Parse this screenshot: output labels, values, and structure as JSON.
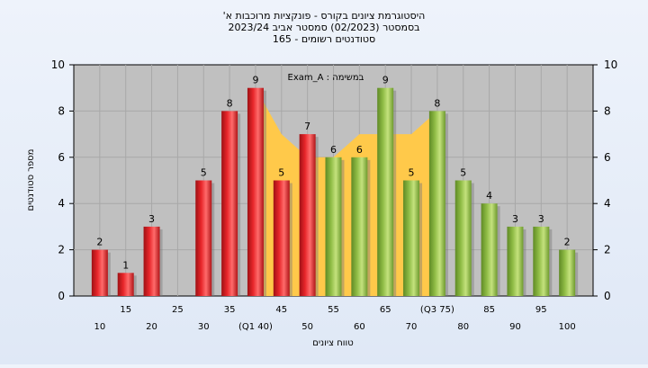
{
  "chart_data": {
    "type": "bar",
    "title_lines": [
      "היסטוגרמת ציונים בקורס - פונקציות מרוכבות א'",
      "בסמסטר  (02/2023)  סמסטר אביב 2023/24",
      "סטודנטים רשומים - 165"
    ],
    "annotation": "במשימה : Exam_A",
    "xlabel": "טווח ציונים",
    "ylabel": "מספר סטודנטים",
    "ylim": [
      0,
      10
    ],
    "yticks": [
      0,
      2,
      4,
      6,
      8,
      10
    ],
    "grid": true,
    "categories": [
      "10",
      "15",
      "20",
      "25",
      "30",
      "35",
      "40",
      "45",
      "50",
      "55",
      "60",
      "65",
      "70",
      "75",
      "80",
      "85",
      "90",
      "95",
      "100"
    ],
    "x_tick_labels": [
      "10",
      "15",
      "20",
      "25",
      "30",
      "35",
      "(Q1 40)",
      "45",
      "50",
      "55",
      "60",
      "65",
      "70",
      "(Q3 75)",
      "80",
      "85",
      "90",
      "95",
      "100"
    ],
    "values": [
      2,
      1,
      3,
      0,
      5,
      8,
      9,
      5,
      7,
      6,
      6,
      9,
      5,
      8,
      5,
      4,
      3,
      3,
      2
    ],
    "bar_colors": [
      "red",
      "red",
      "red",
      "red",
      "red",
      "red",
      "red",
      "red",
      "red",
      "green",
      "green",
      "green",
      "green",
      "green",
      "green",
      "green",
      "green",
      "green",
      "green"
    ],
    "band_values": [
      null,
      null,
      null,
      null,
      null,
      null,
      9,
      7,
      6,
      6,
      7,
      7,
      7,
      8,
      null,
      null,
      null,
      null,
      null
    ],
    "colors": {
      "red": "#e8262a",
      "green": "#8fbc45",
      "band": "#ffc94a",
      "plot_bg": "#c0c0c0",
      "grid": "#a8a8a8"
    }
  }
}
